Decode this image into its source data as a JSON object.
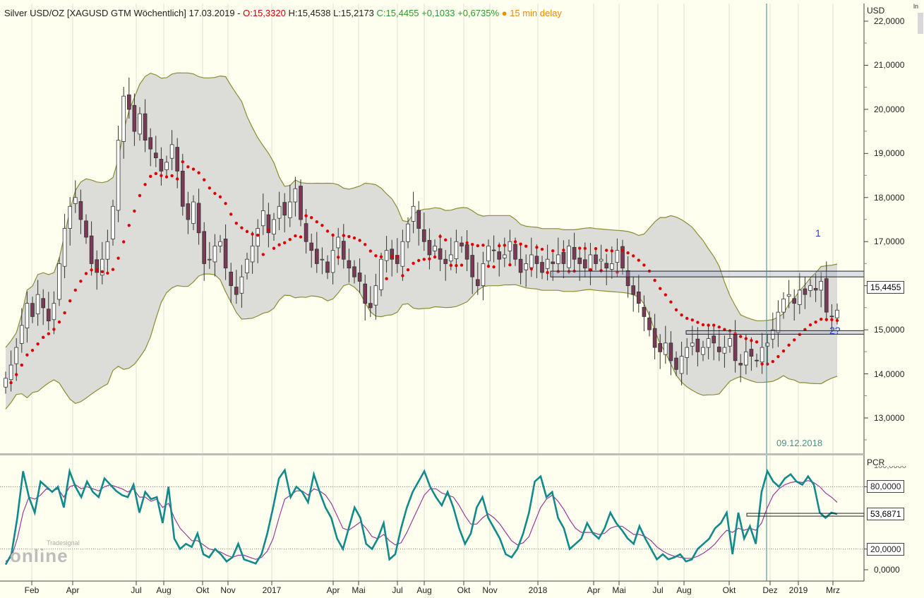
{
  "header": {
    "symbol": "Silver USD/OZ [XAGUSD GTM Wöchentlich] 17.03.2019 -",
    "open": "O:15,3320",
    "high_low": "H:15,4538 L:15,2173",
    "close_change": "C:15,4455 +0,1033 +0,6735%",
    "delay_dot": "●",
    "delay": "15 min delay"
  },
  "price_panel": {
    "unit": "USD",
    "ticks": [
      "22,0000",
      "21,0000",
      "20,0000",
      "19,0000",
      "18,0000",
      "17,0000",
      "16,0000",
      "15,0000",
      "14,0000",
      "13,0000"
    ],
    "current_price": "15,4455",
    "annotation_1": "1",
    "annotation_2": "2?",
    "vertical_marker_date": "09.12.2018"
  },
  "indicator_panel": {
    "unit": "PCR",
    "top_tick": "100,0000",
    "ticks": [
      "80,0000",
      "20,0000",
      "0,0000"
    ],
    "current_value": "53,6871"
  },
  "x_axis": {
    "labels": [
      "Feb",
      "Apr",
      "Jul",
      "Aug",
      "Okt",
      "Nov",
      "2017",
      "Apr",
      "Mai",
      "Jul",
      "Aug",
      "Okt",
      "Nov",
      "2018",
      "Apr",
      "Mai",
      "Jul",
      "Aug",
      "Okt",
      "Dez",
      "2019",
      "Mrz"
    ]
  },
  "logo": {
    "small": "Tradesignal",
    "main": "online"
  },
  "corner_label": "ln",
  "colors": {
    "background": "#fffff0",
    "band_fill": "#dcddd8",
    "band_line": "#8c8c32",
    "candle_down": "#7a3a55",
    "candle_up": "#ffffff",
    "sar": "#e00000",
    "pcr_fast": "#108a8a",
    "pcr_slow": "#9a3a9a",
    "marker_line": "#3a8a8a"
  },
  "chart_data": [
    {
      "type": "candlestick",
      "title": "Silver USD/OZ [XAGUSD GTM Wöchentlich] 17.03.2019",
      "ylabel": "USD",
      "ylim": [
        12.5,
        22.3
      ],
      "overlays": [
        "bollinger_bands",
        "parabolic_sar"
      ],
      "last": {
        "open": 15.332,
        "high": 15.4538,
        "low": 15.2173,
        "close": 15.4455,
        "change": 0.1033,
        "change_pct": 0.6735
      },
      "close_path": [
        13.9,
        14.2,
        14.6,
        15.1,
        15.6,
        15.3,
        15.8,
        15.5,
        15.2,
        15.6,
        16.5,
        17.3,
        17.8,
        18.0,
        17.5,
        17.1,
        16.5,
        16.3,
        16.6,
        17.0,
        17.8,
        19.3,
        20.3,
        20.0,
        19.5,
        19.9,
        19.3,
        19.1,
        18.9,
        18.6,
        18.8,
        19.2,
        18.6,
        17.8,
        17.5,
        17.9,
        17.2,
        16.5,
        16.6,
        16.9,
        17.0,
        16.4,
        16.0,
        15.8,
        16.2,
        16.6,
        16.9,
        17.3,
        17.7,
        17.2,
        17.5,
        17.8,
        17.6,
        17.9,
        18.2,
        17.5,
        17.0,
        16.8,
        16.5,
        16.6,
        16.3,
        16.8,
        17.1,
        16.6,
        16.4,
        16.2,
        16.1,
        15.6,
        15.5,
        16.0,
        16.6,
        16.8,
        16.6,
        16.5,
        17.0,
        17.4,
        17.8,
        17.3,
        17.0,
        16.7,
        16.9,
        16.6,
        16.5,
        16.7,
        17.0,
        16.9,
        16.6,
        16.2,
        16.0,
        16.5,
        16.9,
        16.8,
        16.6,
        16.7,
        17.0,
        16.6,
        16.3,
        16.5,
        16.7,
        16.5,
        16.3,
        16.6,
        16.5,
        16.7,
        16.5,
        16.9,
        16.6,
        16.5,
        16.4,
        16.7,
        16.5,
        16.6,
        16.4,
        16.5,
        16.8,
        16.4,
        16.0,
        15.8,
        15.6,
        15.3,
        15.0,
        14.6,
        14.5,
        14.7,
        14.3,
        14.1,
        14.4,
        14.6,
        14.7,
        14.5,
        14.6,
        14.8,
        14.7,
        14.5,
        14.6,
        14.8,
        14.3,
        14.2,
        14.5,
        14.4,
        14.3,
        14.6,
        14.7,
        15.0,
        15.4,
        15.7,
        15.8,
        15.6,
        15.9,
        15.8,
        16.0,
        15.9,
        16.1,
        15.4,
        15.3,
        15.4455
      ]
    },
    {
      "type": "line",
      "title": "PCR",
      "ylim": [
        -5,
        105
      ],
      "series": [
        {
          "name": "fast",
          "values": [
            5,
            15,
            50,
            95,
            70,
            55,
            85,
            80,
            75,
            80,
            60,
            95,
            80,
            70,
            85,
            75,
            70,
            88,
            82,
            76,
            72,
            70,
            82,
            55,
            75,
            68,
            70,
            45,
            80,
            30,
            20,
            25,
            22,
            35,
            15,
            12,
            20,
            15,
            8,
            12,
            25,
            10,
            8,
            6,
            15,
            35,
            60,
            88,
            96,
            70,
            80,
            75,
            65,
            92,
            75,
            60,
            50,
            30,
            20,
            40,
            60,
            50,
            25,
            20,
            30,
            45,
            10,
            15,
            40,
            60,
            75,
            85,
            95,
            80,
            70,
            62,
            75,
            60,
            40,
            25,
            35,
            60,
            70,
            50,
            40,
            30,
            15,
            12,
            20,
            35,
            55,
            85,
            90,
            70,
            75,
            50,
            40,
            20,
            25,
            30,
            45,
            35,
            30,
            40,
            55,
            45,
            38,
            30,
            25,
            42,
            30,
            20,
            10,
            15,
            10,
            12,
            15,
            8,
            10,
            20,
            25,
            30,
            40,
            45,
            55,
            15,
            55,
            30,
            42,
            25,
            75,
            95,
            85,
            80,
            88,
            92,
            85,
            82,
            90,
            82,
            55,
            50,
            55,
            53.7
          ]
        },
        {
          "name": "slow",
          "values": [
            8,
            12,
            30,
            55,
            70,
            68,
            72,
            78,
            76,
            78,
            70,
            80,
            82,
            78,
            80,
            78,
            76,
            80,
            82,
            80,
            78,
            75,
            78,
            70,
            70,
            66,
            68,
            60,
            64,
            50,
            40,
            34,
            28,
            28,
            24,
            20,
            19,
            17,
            14,
            12,
            14,
            14,
            12,
            10,
            12,
            18,
            30,
            50,
            68,
            72,
            76,
            76,
            72,
            78,
            76,
            72,
            64,
            52,
            40,
            38,
            42,
            46,
            40,
            32,
            30,
            34,
            28,
            24,
            26,
            36,
            48,
            60,
            72,
            78,
            78,
            74,
            72,
            70,
            62,
            52,
            44,
            44,
            50,
            54,
            50,
            44,
            36,
            28,
            24,
            26,
            32,
            46,
            60,
            68,
            72,
            66,
            58,
            48,
            40,
            36,
            36,
            36,
            34,
            35,
            40,
            42,
            42,
            38,
            34,
            34,
            32,
            28,
            22,
            18,
            15,
            13,
            12,
            11,
            11,
            13,
            16,
            20,
            25,
            32,
            38,
            36,
            40,
            38,
            40,
            38,
            45,
            60,
            72,
            78,
            82,
            84,
            85,
            84,
            86,
            84,
            80,
            74,
            70,
            65
          ]
        }
      ],
      "reference_lines": [
        80,
        20
      ]
    }
  ]
}
